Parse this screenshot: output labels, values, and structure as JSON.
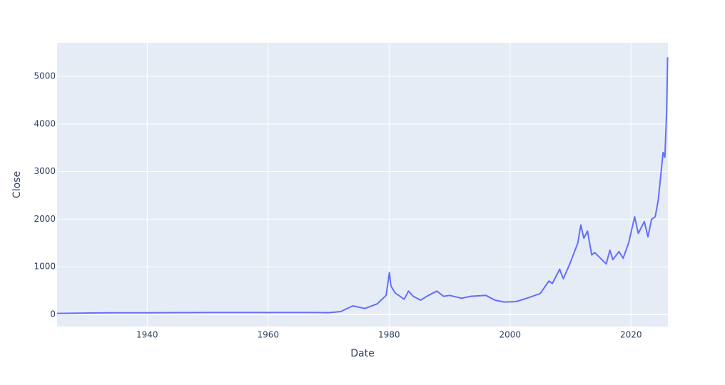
{
  "chart_data": {
    "type": "line",
    "x_label": "Date",
    "y_label": "Close",
    "x": [
      1925.1,
      1934,
      1940,
      1950,
      1968,
      1970,
      1972,
      1974,
      1976,
      1978,
      1979.5,
      1980.05,
      1980.3,
      1981,
      1982.5,
      1983.2,
      1984,
      1985.2,
      1986.5,
      1987.9,
      1989,
      1990,
      1992,
      1993.5,
      1996,
      1997.5,
      1999,
      2001,
      2003,
      2005,
      2006.4,
      2007,
      2008.2,
      2008.8,
      2009.5,
      2010,
      2011.2,
      2011.7,
      2012.2,
      2012.8,
      2013.5,
      2014,
      2015.9,
      2016.5,
      2017,
      2018,
      2018.7,
      2019.6,
      2020.6,
      2021.2,
      2022.2,
      2022.8,
      2023.4,
      2024,
      2024.5,
      2025.3,
      2025.6,
      2025.9,
      2026.05
    ],
    "values": [
      20.67,
      35,
      35,
      40,
      39,
      36,
      60,
      180,
      125,
      220,
      400,
      880,
      600,
      450,
      320,
      490,
      380,
      300,
      400,
      490,
      380,
      400,
      340,
      380,
      400,
      300,
      260,
      270,
      350,
      440,
      700,
      650,
      950,
      750,
      950,
      1100,
      1500,
      1880,
      1600,
      1750,
      1250,
      1300,
      1060,
      1350,
      1150,
      1320,
      1180,
      1500,
      2050,
      1700,
      1950,
      1630,
      2000,
      2050,
      2400,
      3400,
      3300,
      4300,
      5400
    ],
    "color": "#636efa",
    "xlim": [
      1925.1,
      2026.1
    ],
    "xticks": [
      1940,
      1960,
      1980,
      2000,
      2020
    ],
    "ylim": [
      -254,
      5704
    ],
    "yticks": [
      0,
      1000,
      2000,
      3000,
      4000,
      5000
    ],
    "grid": true
  }
}
